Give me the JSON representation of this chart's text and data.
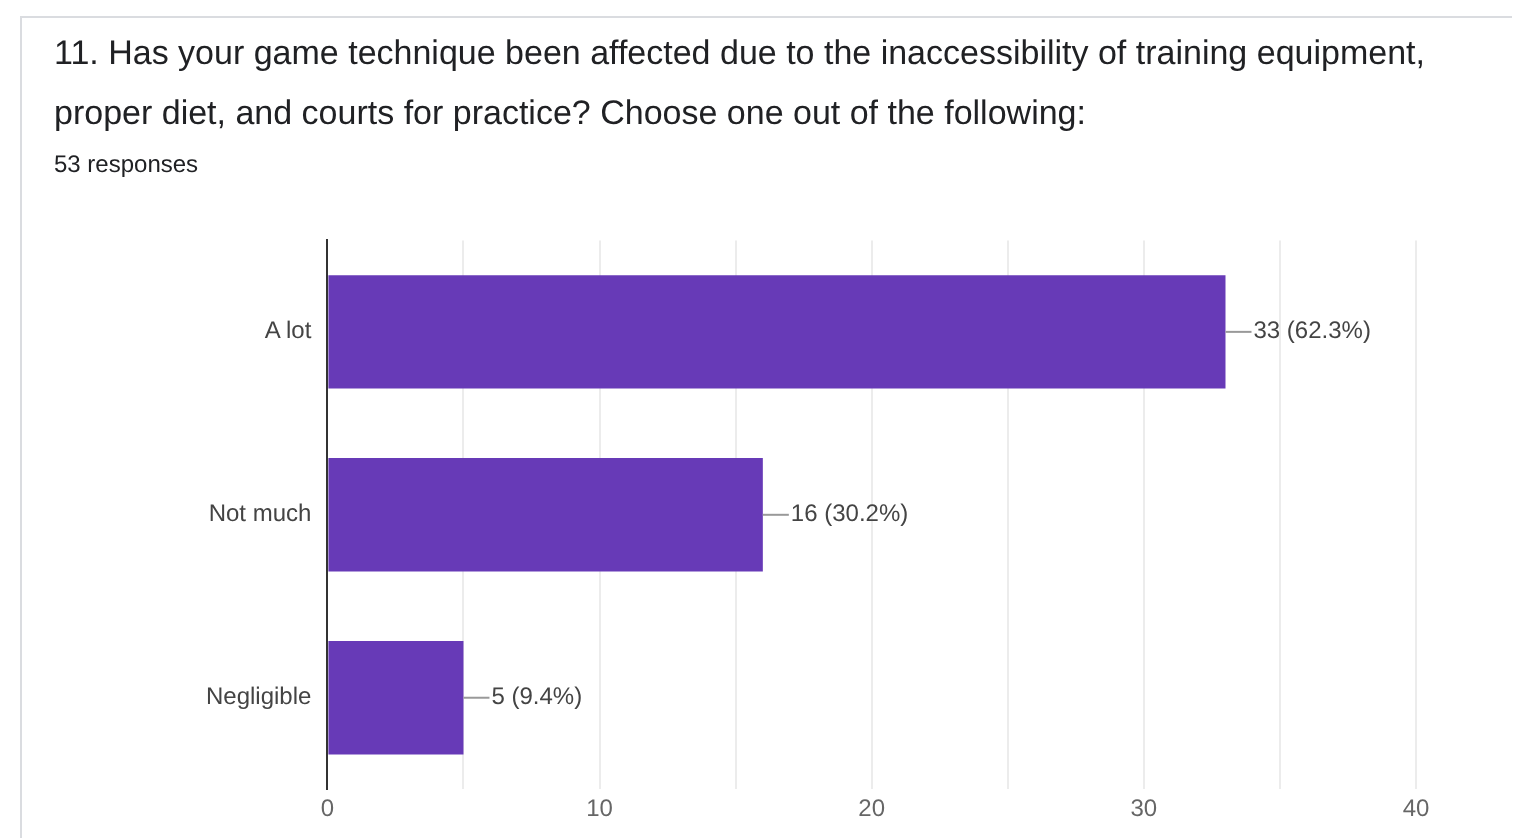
{
  "chart_data": {
    "type": "bar",
    "orientation": "horizontal",
    "title": "11. Has your game technique been affected due to the inaccessibility of training equipment, proper diet, and courts for practice? Choose one out of the following:",
    "subtitle": "53 responses",
    "categories": [
      "A lot",
      "Not much",
      "Negligible"
    ],
    "values": [
      33,
      16,
      5
    ],
    "value_labels": [
      "33 (62.3%)",
      "16 (30.2%)",
      "5 (9.4%)"
    ],
    "color": "#673ab7",
    "xlim": [
      0,
      40
    ],
    "xticks": [
      0,
      {
        "value": 5,
        "label": null
      },
      10,
      {
        "value": 15,
        "label": null
      },
      20,
      {
        "value": 25,
        "label": null
      },
      30,
      {
        "value": 35,
        "label": null
      },
      40
    ],
    "grid": "x",
    "legend": false
  }
}
